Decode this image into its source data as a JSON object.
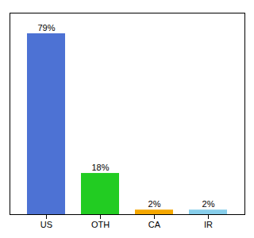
{
  "chart_data": {
    "type": "bar",
    "categories": [
      "US",
      "OTH",
      "CA",
      "IR"
    ],
    "values": [
      79,
      18,
      2,
      2
    ],
    "value_labels": [
      "79%",
      "18%",
      "2%",
      "2%"
    ],
    "colors": [
      "#4d72d4",
      "#22cc22",
      "#f5a800",
      "#87ceeb"
    ],
    "ylim": [
      0,
      88
    ],
    "data_labels": true,
    "tick_labels": "x"
  }
}
